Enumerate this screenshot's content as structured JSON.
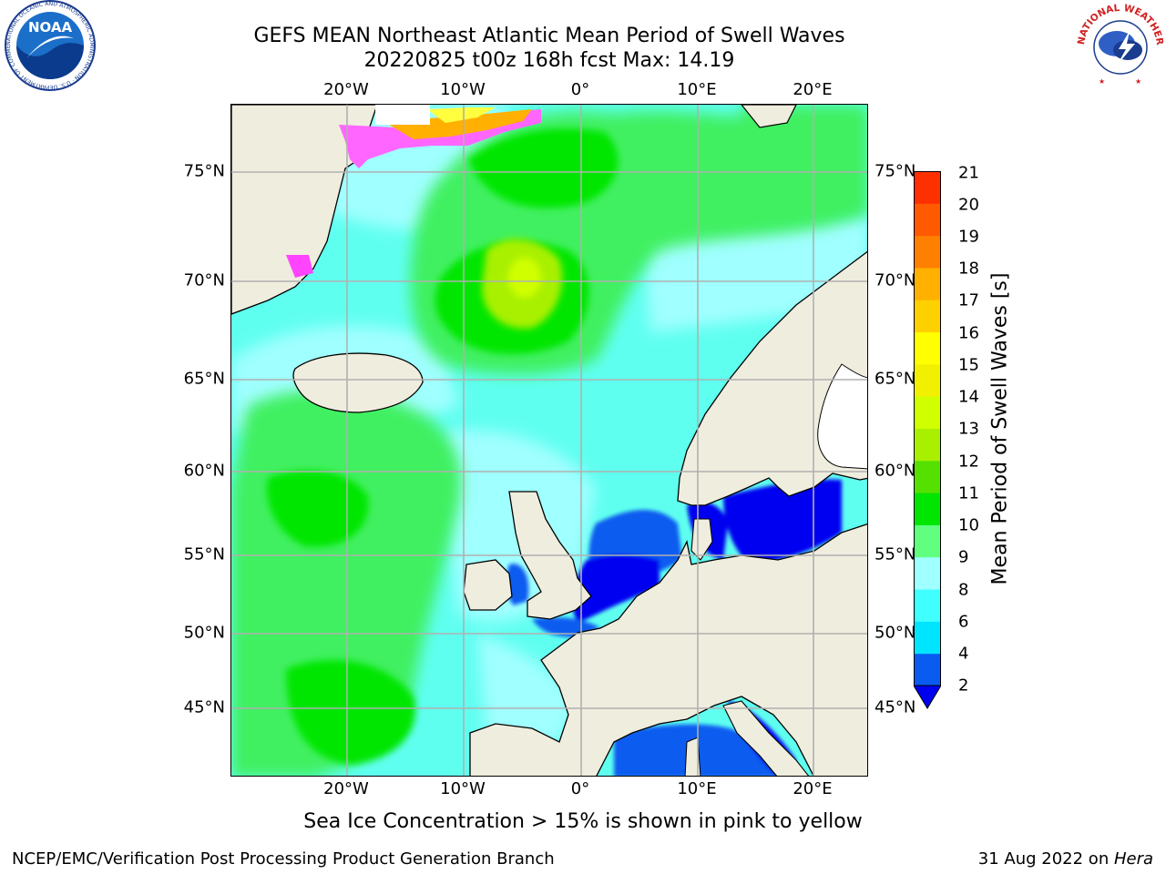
{
  "title_line1": "GEFS MEAN Northeast Atlantic Mean Period of Swell Waves",
  "title_line2": "20220825 t00z 168h fcst   Max: 14.19",
  "lon_labels": [
    "20°W",
    "10°W",
    "0°",
    "10°E",
    "20°E"
  ],
  "lat_labels": [
    "75°N",
    "70°N",
    "65°N",
    "60°N",
    "55°N",
    "50°N",
    "45°N"
  ],
  "colorbar": {
    "title": "Mean Period of Swell Waves [s]",
    "ticks": [
      "2",
      "4",
      "6",
      "8",
      "9",
      "10",
      "11",
      "12",
      "13",
      "14",
      "15",
      "16",
      "17",
      "18",
      "19",
      "20",
      "21"
    ],
    "colors": [
      "#0a5cf0",
      "#00e5ff",
      "#40ffff",
      "#a0ffff",
      "#60ff80",
      "#00e600",
      "#55e000",
      "#a8f000",
      "#d0ff00",
      "#f0f000",
      "#ffff00",
      "#ffd000",
      "#ffb000",
      "#ff8000",
      "#ff5a00",
      "#ff3000",
      "#ff0000"
    ],
    "under_color": "#0000f0"
  },
  "caption": "Sea Ice Concentration > 15% is shown in pink to yellow",
  "footer_left": "NCEP/EMC/Verification Post Processing Product Generation Branch",
  "footer_date": "31 Aug 2022 on ",
  "footer_machine": "Hera",
  "noaa_logo_text": "NOAA",
  "noaa_ring_text": "NATIONAL OCEANIC AND ATMOSPHERIC ADMINISTRATION · U.S. DEPARTMENT OF COMMERCE ·",
  "nws_ring_text": "NATIONAL WEATHER SERVICE",
  "map_colors": {
    "land": "#efedde",
    "ocean_base": "#5ffff0"
  }
}
